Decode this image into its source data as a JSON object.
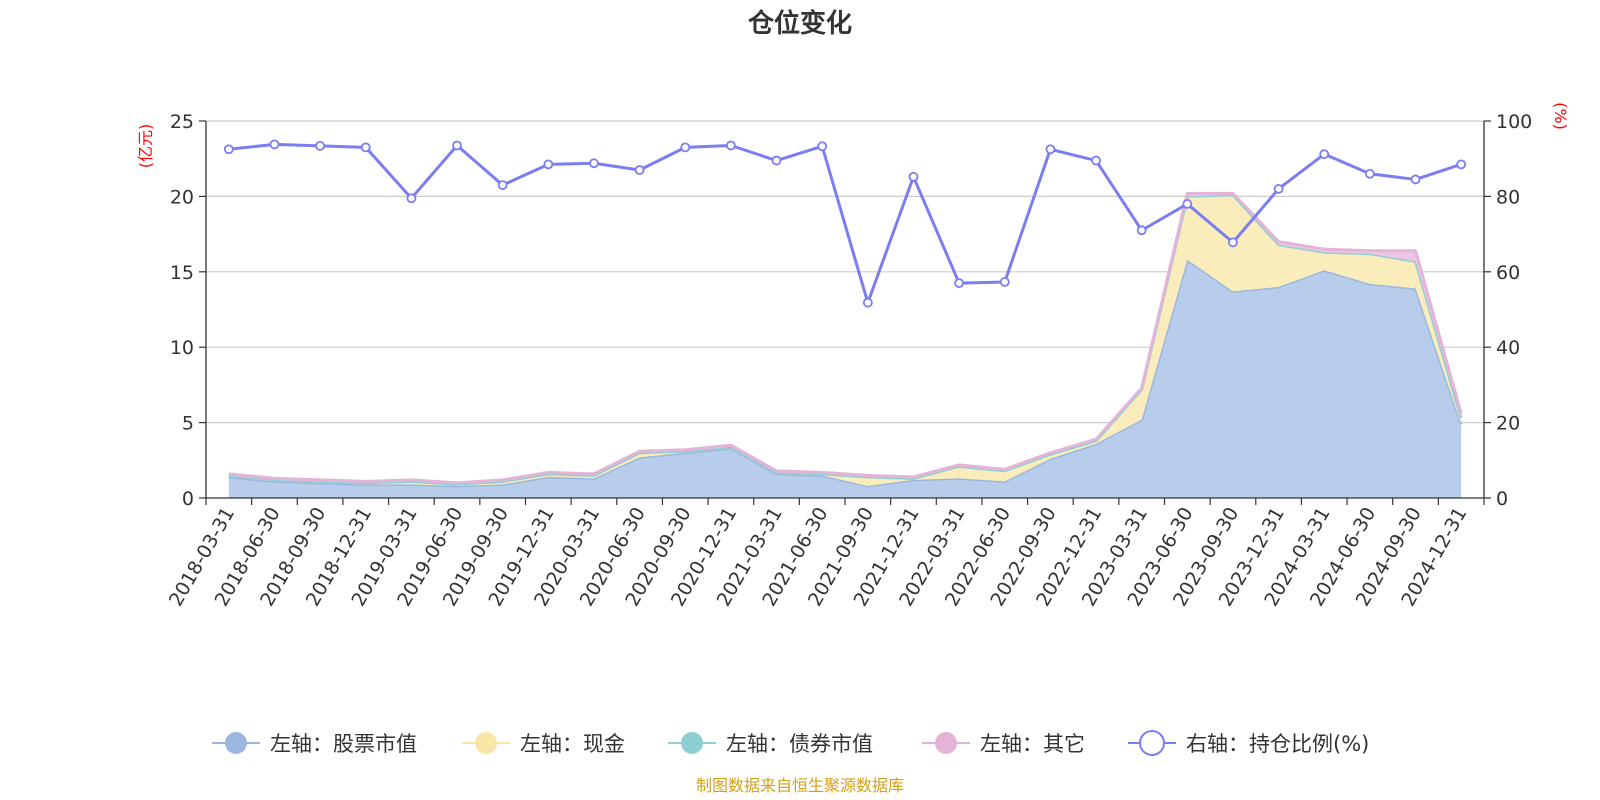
{
  "chart_data": {
    "type": "area",
    "title": "仓位变化",
    "y_left_unit": "(亿元)",
    "y_right_unit": "(%)",
    "ylim_left": [
      0,
      25
    ],
    "ylim_right": [
      0,
      100
    ],
    "y_left_ticks": [
      0,
      5,
      10,
      15,
      20,
      25
    ],
    "y_right_ticks": [
      0,
      20,
      40,
      60,
      80,
      100
    ],
    "grid": true,
    "legend_position": "bottom",
    "x": [
      "2018-03-31",
      "2018-06-30",
      "2018-09-30",
      "2018-12-31",
      "2019-03-31",
      "2019-06-30",
      "2019-09-30",
      "2019-12-31",
      "2020-03-31",
      "2020-06-30",
      "2020-09-30",
      "2020-12-31",
      "2021-03-31",
      "2021-06-30",
      "2021-09-30",
      "2021-12-31",
      "2022-03-31",
      "2022-06-30",
      "2022-09-30",
      "2022-12-31",
      "2023-03-31",
      "2023-06-30",
      "2023-09-30",
      "2023-12-31",
      "2024-03-31",
      "2024-06-30",
      "2024-09-30",
      "2024-12-31"
    ],
    "series": [
      {
        "name": "左轴：股票市值",
        "axis": "left",
        "kind": "stacked-area",
        "color": "#9bb7e0",
        "fill": "#b8cdeb",
        "values": [
          1.4,
          1.1,
          1.0,
          0.9,
          0.9,
          0.8,
          0.9,
          1.4,
          1.3,
          2.7,
          3.0,
          3.3,
          1.6,
          1.5,
          0.8,
          1.2,
          1.3,
          1.1,
          2.6,
          3.6,
          5.2,
          15.8,
          13.7,
          14.0,
          15.1,
          14.2,
          13.9,
          4.9
        ]
      },
      {
        "name": "左轴：现金",
        "axis": "left",
        "kind": "stacked-area",
        "color": "#f7e6a6",
        "fill": "#fbedbb",
        "values": [
          0.1,
          0.1,
          0.1,
          0.1,
          0.2,
          0.1,
          0.2,
          0.2,
          0.2,
          0.3,
          0.1,
          0.1,
          0.1,
          0.1,
          0.6,
          0.1,
          0.8,
          0.7,
          0.3,
          0.2,
          2.0,
          4.2,
          6.4,
          2.8,
          1.2,
          2.0,
          1.8,
          0.4
        ]
      },
      {
        "name": "左轴：债券市值",
        "axis": "left",
        "kind": "stacked-area",
        "color": "#8ecfd4",
        "fill": "#a8dadd",
        "values": [
          0,
          0,
          0,
          0,
          0,
          0,
          0,
          0,
          0,
          0,
          0,
          0,
          0,
          0,
          0,
          0,
          0,
          0,
          0,
          0,
          0,
          0,
          0,
          0,
          0,
          0,
          0,
          0
        ]
      },
      {
        "name": "左轴：其它",
        "axis": "left",
        "kind": "stacked-area",
        "color": "#e4b4d8",
        "fill": "#ecc6e2",
        "values": [
          0.1,
          0.1,
          0.1,
          0.1,
          0.1,
          0.1,
          0.1,
          0.1,
          0.1,
          0.1,
          0.1,
          0.1,
          0.1,
          0.1,
          0.1,
          0.1,
          0.1,
          0.1,
          0.1,
          0.1,
          0.1,
          0.2,
          0.1,
          0.2,
          0.2,
          0.2,
          0.7,
          0.3
        ]
      },
      {
        "name": "右轴：持仓比例(%)",
        "axis": "right",
        "kind": "line",
        "color": "#7b7ef0",
        "values": [
          92.5,
          93.8,
          93.4,
          93.0,
          79.5,
          93.5,
          83.0,
          88.5,
          88.8,
          87.0,
          93.0,
          93.5,
          89.5,
          93.3,
          51.8,
          85.2,
          57.0,
          57.3,
          92.5,
          89.5,
          71.0,
          78.0,
          67.8,
          82.0,
          91.2,
          86.0,
          84.5,
          88.5
        ]
      }
    ]
  },
  "source_text": "制图数据来自恒生聚源数据库"
}
